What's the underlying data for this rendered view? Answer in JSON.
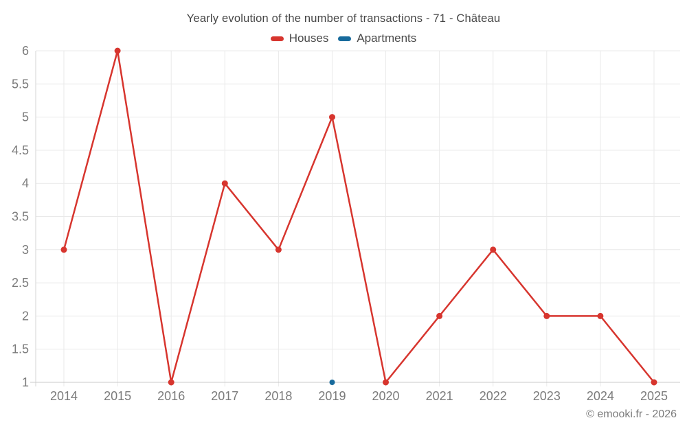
{
  "header": {
    "title": "Yearly evolution of the number of transactions - 71 - Château"
  },
  "footer": {
    "copyright": "© emooki.fr - 2026"
  },
  "colors": {
    "houses": "#d7352e",
    "apartments": "#176a9c",
    "grid": "#e9e9e9",
    "axis": "#c9c9c9",
    "tick_label": "#7b7b7b",
    "title_text": "#454545"
  },
  "chart_data": {
    "type": "line",
    "title": "Yearly evolution of the number of transactions - 71 - Château",
    "categories": [
      "2014",
      "2015",
      "2016",
      "2017",
      "2018",
      "2019",
      "2020",
      "2021",
      "2022",
      "2023",
      "2024",
      "2025"
    ],
    "series": [
      {
        "name": "Houses",
        "color": "#d7352e",
        "values": [
          3,
          6,
          1,
          4,
          3,
          5,
          1,
          2,
          3,
          2,
          2,
          1
        ]
      },
      {
        "name": "Apartments",
        "color": "#176a9c",
        "values": [
          null,
          null,
          null,
          null,
          null,
          1,
          null,
          null,
          null,
          null,
          null,
          null
        ]
      }
    ],
    "xlabel": "",
    "ylabel": "",
    "ylim": [
      1,
      6
    ],
    "ytick_step": 0.5,
    "grid": true,
    "legend_position": "top"
  }
}
